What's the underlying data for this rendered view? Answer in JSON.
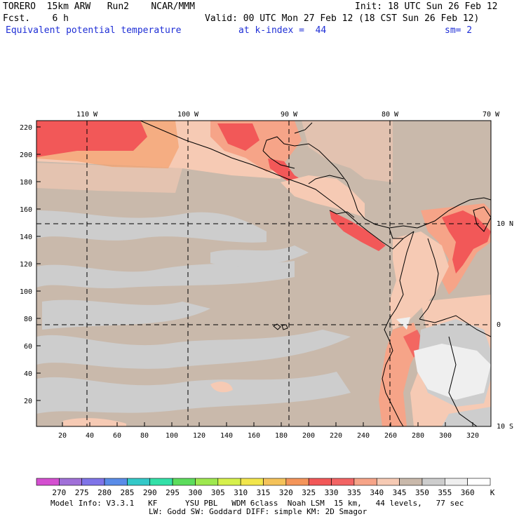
{
  "header": {
    "model_line": "TORERO  15km ARW   Run2    NCAR/MMM",
    "init_line": "Init: 18 UTC Sun 26 Feb 12",
    "fcst_line": "Fcst.    6 h",
    "valid_line": "Valid: 00 UTC Mon 27 Feb 12 (18 CST Sun 26 Feb 12)",
    "field_name": "Equivalent potential temperature",
    "level": "at k-index =  44",
    "smoothing": "sm= 2"
  },
  "map": {
    "top_lon_labels": [
      "110 W",
      "100 W",
      "90 W",
      "80 W",
      "70 W"
    ],
    "right_lat_labels": [
      "10 N",
      "0",
      "10 S"
    ],
    "left_y_ticks": [
      "220",
      "200",
      "180",
      "160",
      "140",
      "120",
      "100",
      "80",
      "60",
      "40",
      "20"
    ],
    "bottom_x_ticks": [
      "20",
      "40",
      "60",
      "80",
      "100",
      "120",
      "140",
      "160",
      "180",
      "200",
      "220",
      "240",
      "260",
      "280",
      "300",
      "320"
    ],
    "grid_style": "dashed"
  },
  "legend": {
    "values": [
      "270",
      "275",
      "280",
      "285",
      "290",
      "295",
      "300",
      "305",
      "310",
      "315",
      "320",
      "325",
      "330",
      "335",
      "340",
      "345",
      "350",
      "355",
      "360"
    ],
    "unit": "K",
    "colors": [
      "#d44fd0",
      "#a070d8",
      "#7f74e8",
      "#5a8ce8",
      "#33c8c8",
      "#33e0a8",
      "#5cdc5c",
      "#9ee84f",
      "#d6f04c",
      "#f2e64c",
      "#f4c25a",
      "#f4955a",
      "#f25858",
      "#f26464",
      "#f6a488",
      "#f6cab4",
      "#c9b9ab",
      "#cdcdcd",
      "#efefef",
      "#ffffff"
    ]
  },
  "footer": {
    "line1": "Model Info: V3.3.1   KF      YSU PBL   WDM 6class  Noah LSM  15 km,   44 levels,   77 sec",
    "line2": "LW: Godd SW: Goddard DIFF: simple KM: 2D Smagor"
  }
}
